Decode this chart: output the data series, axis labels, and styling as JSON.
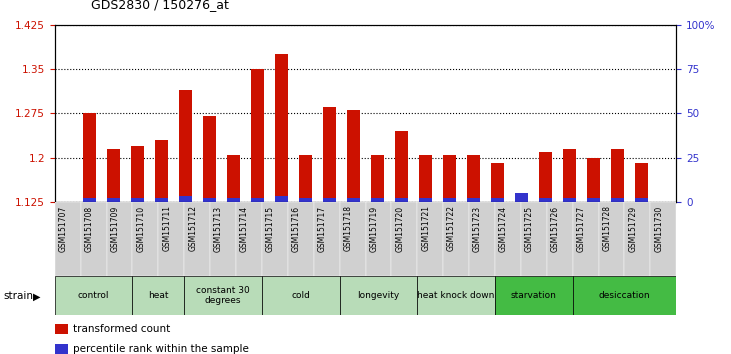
{
  "title": "GDS2830 / 150276_at",
  "samples": [
    "GSM151707",
    "GSM151708",
    "GSM151709",
    "GSM151710",
    "GSM151711",
    "GSM151712",
    "GSM151713",
    "GSM151714",
    "GSM151715",
    "GSM151716",
    "GSM151717",
    "GSM151718",
    "GSM151719",
    "GSM151720",
    "GSM151721",
    "GSM151722",
    "GSM151723",
    "GSM151724",
    "GSM151725",
    "GSM151726",
    "GSM151727",
    "GSM151728",
    "GSM151729",
    "GSM151730"
  ],
  "bar_values": [
    1.275,
    1.215,
    1.22,
    1.23,
    1.315,
    1.27,
    1.205,
    1.35,
    1.375,
    1.205,
    1.285,
    1.28,
    1.205,
    1.245,
    1.205,
    1.205,
    1.205,
    1.19,
    1.125,
    1.21,
    1.215,
    1.2,
    1.215,
    1.19
  ],
  "percentile_values": [
    2,
    2,
    2,
    2,
    3,
    2,
    2,
    2,
    3,
    2,
    2,
    2,
    2,
    2,
    2,
    2,
    2,
    2,
    5,
    2,
    2,
    2,
    2,
    2
  ],
  "bar_color": "#CC1100",
  "percentile_color": "#3333CC",
  "ylim_left": [
    1.125,
    1.425
  ],
  "ylim_right": [
    0,
    100
  ],
  "yticks_left": [
    1.125,
    1.2,
    1.275,
    1.35,
    1.425
  ],
  "yticks_right": [
    0,
    25,
    50,
    75,
    100
  ],
  "ytick_labels_left": [
    "1.125",
    "1.2",
    "1.275",
    "1.35",
    "1.425"
  ],
  "ytick_labels_right": [
    "0",
    "25",
    "50",
    "75",
    "100%"
  ],
  "groups": [
    {
      "label": "control",
      "start": 0,
      "end": 3,
      "light": true
    },
    {
      "label": "heat",
      "start": 3,
      "end": 5,
      "light": true
    },
    {
      "label": "constant 30\ndegrees",
      "start": 5,
      "end": 8,
      "light": true
    },
    {
      "label": "cold",
      "start": 8,
      "end": 11,
      "light": true
    },
    {
      "label": "longevity",
      "start": 11,
      "end": 14,
      "light": true
    },
    {
      "label": "heat knock down",
      "start": 14,
      "end": 17,
      "light": true
    },
    {
      "label": "starvation",
      "start": 17,
      "end": 20,
      "light": false
    },
    {
      "label": "desiccation",
      "start": 20,
      "end": 24,
      "light": false
    }
  ],
  "group_color_light": "#b8dcb8",
  "group_color_bright": "#44bb44",
  "legend_items": [
    {
      "label": "transformed count",
      "color": "#CC1100"
    },
    {
      "label": "percentile rank within the sample",
      "color": "#3333CC"
    }
  ],
  "strain_label": "strain",
  "background_color": "#ffffff",
  "bar_width": 0.55,
  "tick_label_bg": "#d0d0d0"
}
